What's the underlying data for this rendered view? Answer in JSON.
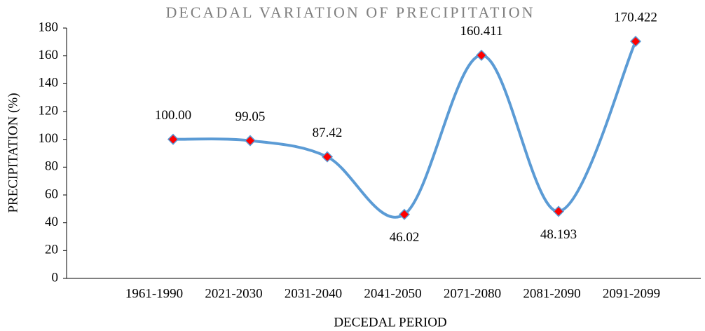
{
  "chart_data": {
    "type": "line",
    "title": "DECADAL VARIATION OF PRECIPITATION",
    "x_label": "DECEDAL PERIOD",
    "y_label": "PRECIPITATION (%)",
    "categories": [
      "1961-1990",
      "2021-2030",
      "2031-2040",
      "2041-2050",
      "2071-2080",
      "2081-2090",
      "2091-2099"
    ],
    "series": [
      {
        "name": "Precipitation",
        "color": "#5b9bd5",
        "marker_color": "#ff0000",
        "values": [
          100,
          99.05,
          87.42,
          46.02,
          160.411,
          48.193,
          170.422
        ],
        "value_labels": [
          "100.00",
          "99.05",
          "87.42",
          "46.02",
          "160.411",
          "48.193",
          "170.422"
        ]
      }
    ],
    "ylim": [
      0,
      180
    ],
    "yticks": [
      0,
      20,
      40,
      60,
      80,
      100,
      120,
      140,
      160,
      180
    ],
    "smooth": true
  }
}
